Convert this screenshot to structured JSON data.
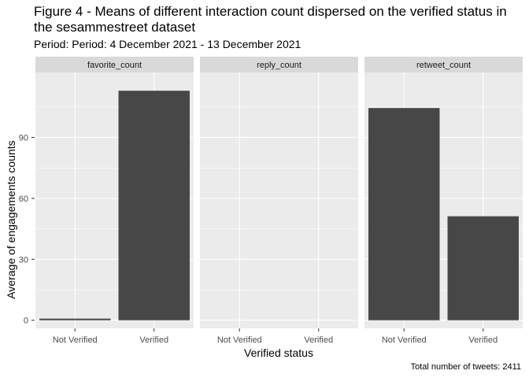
{
  "chart_data": {
    "type": "bar",
    "title": "Figure 4 - Means of different interaction count dispersed on the verified status in the sesammestreet dataset",
    "subtitle": "Period: Period: 4 December 2021 - 13 December 2021",
    "xlabel": "Verified status",
    "ylabel": "Average of engagements counts",
    "caption": "Total number of tweets: 2411",
    "categories": [
      "Not Verified",
      "Verified"
    ],
    "ylim": [
      -4,
      122
    ],
    "yticks": [
      0,
      30,
      60,
      90
    ],
    "grid": true,
    "facets": [
      {
        "name": "favorite_count",
        "values": [
          0.8,
          113
        ]
      },
      {
        "name": "reply_count",
        "values": [
          0,
          0
        ]
      },
      {
        "name": "retweet_count",
        "values": [
          104.5,
          51.2
        ]
      }
    ],
    "colors": {
      "bar": "#474747",
      "panel": "#EBEBEB",
      "strip": "#D9D9D9",
      "grid": "#FFFFFF",
      "axis_text": "#4D4D4D"
    }
  }
}
